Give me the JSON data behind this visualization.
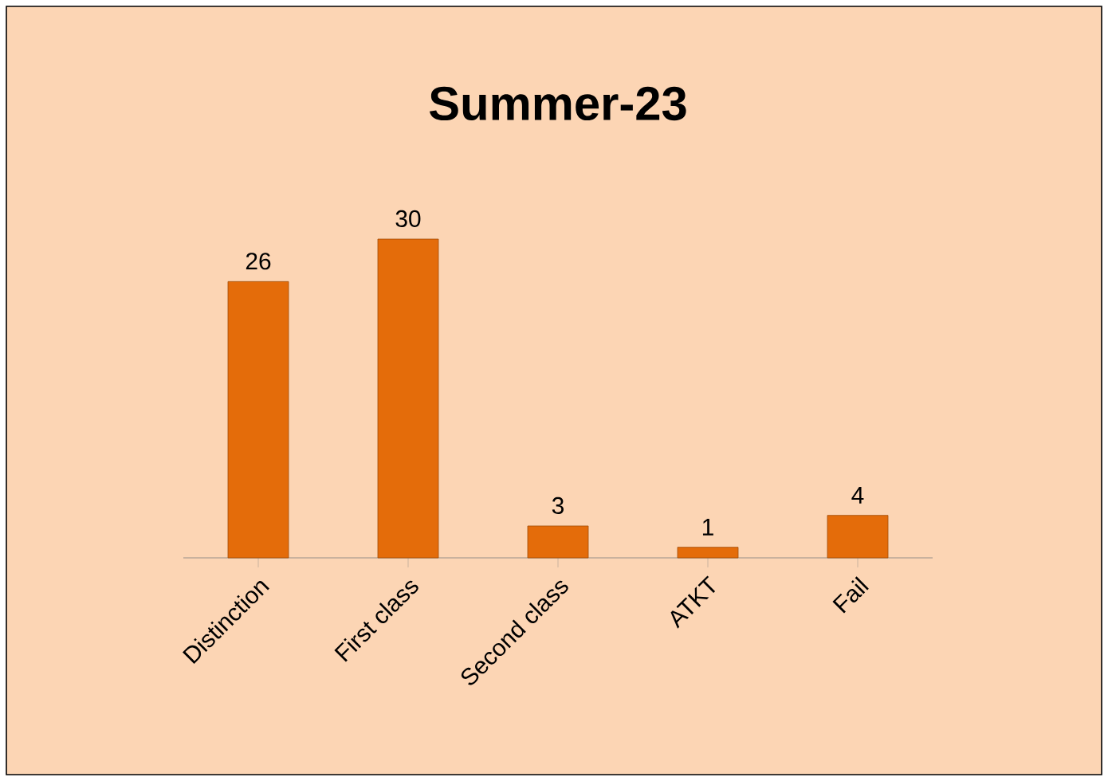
{
  "chart_data": {
    "type": "bar",
    "title": "Summer-23",
    "categories": [
      "Distinction",
      "First class",
      "Second class",
      "ATKT",
      "Fail"
    ],
    "values": [
      26,
      30,
      3,
      1,
      4
    ],
    "color": "#e46c0a",
    "data_labels": true
  }
}
